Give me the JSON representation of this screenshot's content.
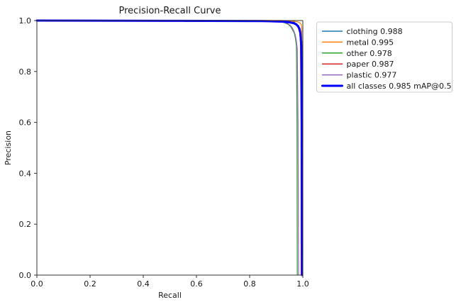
{
  "figure": {
    "background": "#ffffff"
  },
  "axes": {
    "spine_color": "#333333",
    "tick_color": "#333333",
    "text_color": "#1a1a1a"
  },
  "legend": {
    "background": "#ffffff",
    "border_color": "#cccccc",
    "position": "outside-upper-right"
  },
  "chart_data": {
    "type": "line",
    "title": "Precision-Recall Curve",
    "xlabel": "Recall",
    "ylabel": "Precision",
    "xlim": [
      0.0,
      1.0
    ],
    "ylim": [
      0.0,
      1.0
    ],
    "xticks": [
      "0.0",
      "0.2",
      "0.4",
      "0.6",
      "0.8",
      "1.0"
    ],
    "yticks": [
      "0.0",
      "0.2",
      "0.4",
      "0.6",
      "0.8",
      "1.0"
    ],
    "grid": false,
    "legend_position": "outside-upper-right",
    "series": [
      {
        "name": "clothing",
        "label": "clothing 0.988",
        "ap": 0.988,
        "color": "#1f77b4",
        "linewidth": 1.2,
        "points": [
          [
            0,
            1
          ],
          [
            0.6,
            1
          ],
          [
            0.6,
            0.998
          ],
          [
            0.9,
            0.998
          ],
          [
            0.95,
            0.997
          ],
          [
            0.96,
            0.994
          ],
          [
            0.97,
            0.994
          ],
          [
            0.97,
            0.988
          ],
          [
            0.978,
            0.988
          ],
          [
            0.978,
            0.98
          ],
          [
            0.985,
            0.98
          ],
          [
            0.985,
            0.968
          ],
          [
            0.99,
            0.968
          ],
          [
            0.99,
            0.945
          ],
          [
            0.994,
            0.945
          ],
          [
            0.994,
            0.92
          ],
          [
            0.997,
            0.92
          ],
          [
            0.997,
            0.86
          ],
          [
            0.9985,
            0.86
          ],
          [
            0.9985,
            0
          ]
        ]
      },
      {
        "name": "metal",
        "label": "metal 0.995",
        "ap": 0.995,
        "color": "#ff7f0e",
        "linewidth": 1.2,
        "points": [
          [
            0,
            1
          ],
          [
            0.93,
            1
          ],
          [
            0.96,
            0.998
          ],
          [
            0.98,
            0.995
          ],
          [
            0.99,
            0.99
          ],
          [
            0.994,
            0.984
          ],
          [
            0.996,
            0.972
          ],
          [
            0.9965,
            0.9
          ],
          [
            0.997,
            0
          ]
        ]
      },
      {
        "name": "other",
        "label": "other 0.978",
        "ap": 0.978,
        "color": "#2ca02c",
        "linewidth": 1.2,
        "points": [
          [
            0,
            1
          ],
          [
            0.55,
            1
          ],
          [
            0.555,
            0.996
          ],
          [
            0.91,
            0.996
          ],
          [
            0.93,
            0.992
          ],
          [
            0.945,
            0.985
          ],
          [
            0.955,
            0.975
          ],
          [
            0.962,
            0.962
          ],
          [
            0.968,
            0.95
          ],
          [
            0.972,
            0.93
          ],
          [
            0.976,
            0.9
          ],
          [
            0.978,
            0.6
          ],
          [
            0.979,
            0
          ]
        ]
      },
      {
        "name": "paper",
        "label": "paper 0.987",
        "ap": 0.987,
        "color": "#d62728",
        "linewidth": 1.2,
        "points": [
          [
            0,
            1
          ],
          [
            0.92,
            1
          ],
          [
            0.95,
            0.997
          ],
          [
            0.965,
            0.99
          ],
          [
            0.975,
            0.983
          ],
          [
            0.983,
            0.97
          ],
          [
            0.988,
            0.952
          ],
          [
            0.991,
            0.92
          ],
          [
            0.993,
            0.6
          ],
          [
            0.9935,
            0
          ]
        ]
      },
      {
        "name": "plastic",
        "label": "plastic 0.977",
        "ap": 0.977,
        "color": "#9467bd",
        "linewidth": 1.2,
        "points": [
          [
            0,
            1
          ],
          [
            0.88,
            1
          ],
          [
            0.92,
            0.997
          ],
          [
            0.94,
            0.99
          ],
          [
            0.952,
            0.982
          ],
          [
            0.96,
            0.972
          ],
          [
            0.966,
            0.96
          ],
          [
            0.971,
            0.945
          ],
          [
            0.975,
            0.925
          ],
          [
            0.979,
            0.89
          ],
          [
            0.982,
            0.6
          ],
          [
            0.984,
            0
          ]
        ]
      },
      {
        "name": "all_classes",
        "label": "all classes 0.985 mAP@0.5",
        "ap": 0.985,
        "color": "#0000ff",
        "linewidth": 3,
        "points": [
          [
            0,
            1
          ],
          [
            0.5,
            0.999
          ],
          [
            0.85,
            0.998
          ],
          [
            0.92,
            0.996
          ],
          [
            0.95,
            0.993
          ],
          [
            0.965,
            0.99
          ],
          [
            0.975,
            0.985
          ],
          [
            0.982,
            0.978
          ],
          [
            0.987,
            0.968
          ],
          [
            0.99,
            0.955
          ],
          [
            0.992,
            0.935
          ],
          [
            0.994,
            0.9
          ],
          [
            0.995,
            0.8
          ],
          [
            0.996,
            0.6
          ],
          [
            0.9965,
            0.3
          ],
          [
            0.997,
            0
          ]
        ]
      }
    ]
  }
}
